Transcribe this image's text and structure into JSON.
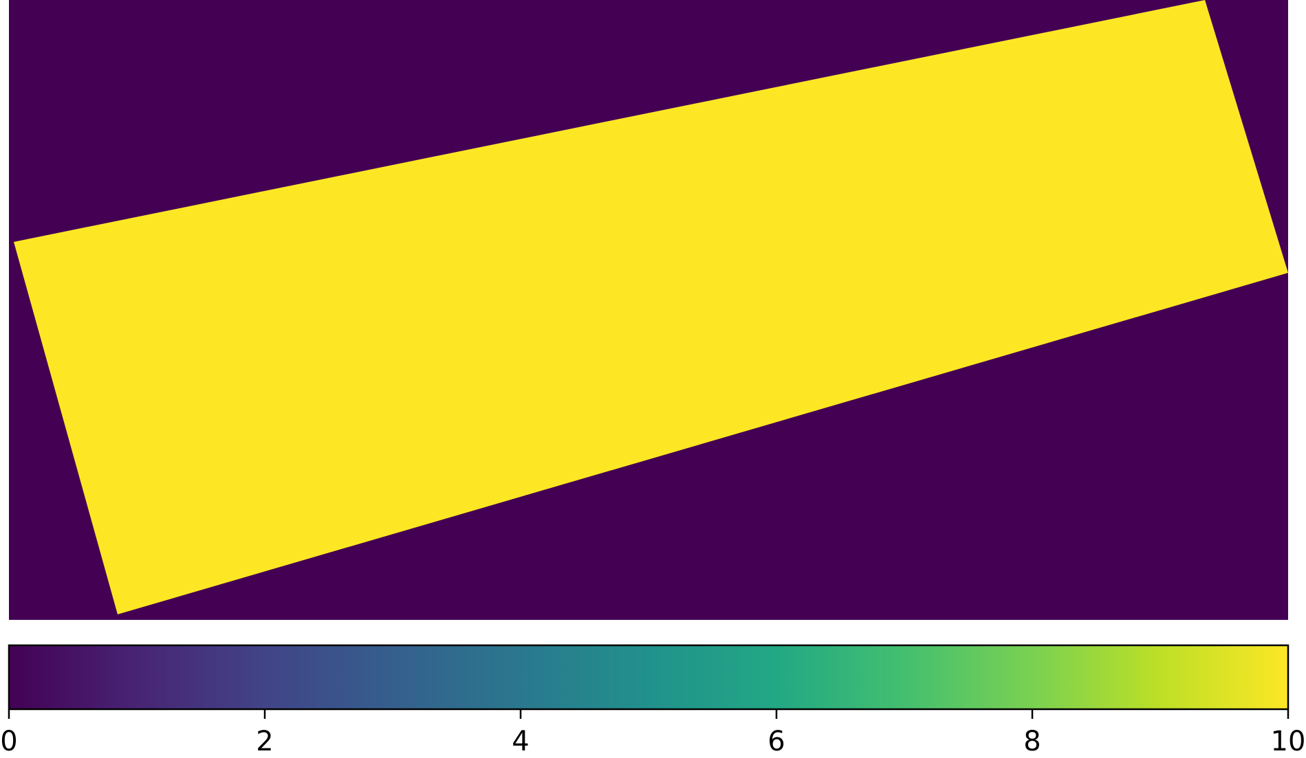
{
  "chart_data": {
    "type": "heatmap",
    "title": "",
    "xlabel": "",
    "ylabel": "",
    "axes_visible": false,
    "grid": false,
    "colormap": "viridis",
    "colors": {
      "background_value_color": "#440154",
      "shape_value_color": "#fde725"
    },
    "values": {
      "background": 0,
      "rotated_rectangle": 10
    },
    "shape": "rotated rectangle (tilted ~12 degrees), blocky pixelated edges",
    "colorbar": {
      "orientation": "horizontal",
      "location": "bottom",
      "range": [
        0,
        10
      ],
      "ticks": [
        0,
        2,
        4,
        6,
        8,
        10
      ],
      "tick_labels": [
        "0",
        "2",
        "4",
        "6",
        "8",
        "10"
      ]
    }
  }
}
